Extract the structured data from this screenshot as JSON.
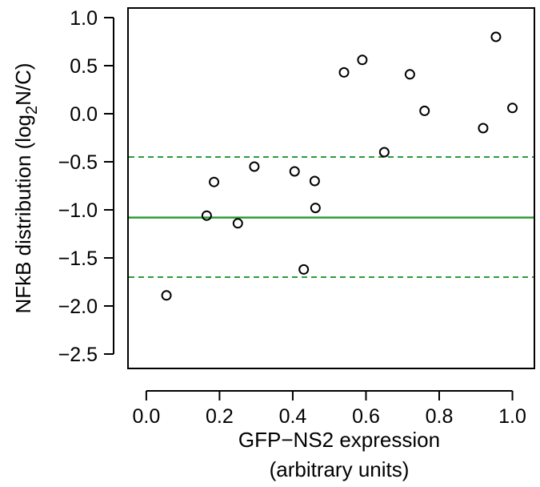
{
  "chart_data": {
    "type": "scatter",
    "title": "",
    "xlabel": {
      "line1": "GFP−NS2 expression",
      "line2": "(arbitrary units)"
    },
    "ylabel": {
      "prefix": "NFkB distribution (log",
      "subscript": "2",
      "suffix": "N/C)"
    },
    "xlim": [
      -0.05,
      1.06
    ],
    "ylim": [
      -2.65,
      1.1
    ],
    "x_ticks": [
      0.0,
      0.2,
      0.4,
      0.6,
      0.8,
      1.0
    ],
    "x_tick_labels": [
      "0.0",
      "0.2",
      "0.4",
      "0.6",
      "0.8",
      "1.0"
    ],
    "y_ticks": [
      -2.5,
      -2.0,
      -1.5,
      -1.0,
      -0.5,
      0.0,
      0.5,
      1.0
    ],
    "y_tick_labels": [
      "−2.5",
      "−2.0",
      "−1.5",
      "−1.0",
      "−0.5",
      "0.0",
      "0.5",
      "1.0"
    ],
    "grid": false,
    "legend": "none",
    "points": [
      {
        "x": 0.055,
        "y": -1.89
      },
      {
        "x": 0.165,
        "y": -1.06
      },
      {
        "x": 0.185,
        "y": -0.71
      },
      {
        "x": 0.25,
        "y": -1.14
      },
      {
        "x": 0.295,
        "y": -0.55
      },
      {
        "x": 0.405,
        "y": -0.6
      },
      {
        "x": 0.43,
        "y": -1.62
      },
      {
        "x": 0.46,
        "y": -0.7
      },
      {
        "x": 0.462,
        "y": -0.98
      },
      {
        "x": 0.54,
        "y": 0.43
      },
      {
        "x": 0.59,
        "y": 0.56
      },
      {
        "x": 0.65,
        "y": -0.4
      },
      {
        "x": 0.72,
        "y": 0.41
      },
      {
        "x": 0.76,
        "y": 0.03
      },
      {
        "x": 0.92,
        "y": -0.15
      },
      {
        "x": 0.955,
        "y": 0.8
      },
      {
        "x": 1.0,
        "y": 0.06
      }
    ],
    "reference_lines": [
      {
        "y": -1.08,
        "style": "solid",
        "color": "#2e9a3a"
      },
      {
        "y": -0.45,
        "style": "dashed",
        "color": "#2e9a3a"
      },
      {
        "y": -1.7,
        "style": "dashed",
        "color": "#2e9a3a"
      }
    ],
    "marker_color": "#000000",
    "marker_shape": "open-circle"
  }
}
